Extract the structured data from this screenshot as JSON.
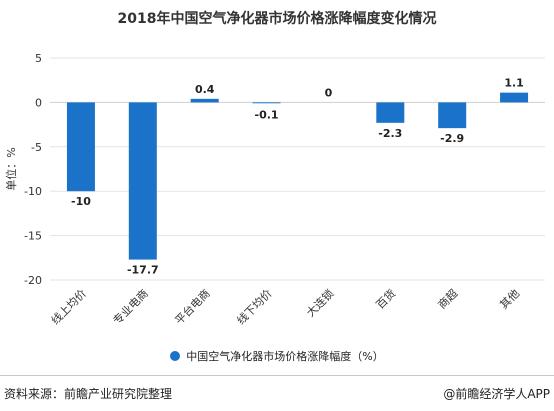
{
  "chart_data": {
    "type": "bar",
    "title": "2018年中国空气净化器市场价格涨降幅度变化情况",
    "ylabel": "单位：%",
    "ylim": [
      -20,
      5
    ],
    "yticks": [
      5,
      0,
      -5,
      -10,
      -15,
      -20
    ],
    "categories": [
      "线上均价",
      "专业电商",
      "平台电商",
      "线下均价",
      "大连锁",
      "百货",
      "商超",
      "其他"
    ],
    "series": [
      {
        "name": "中国空气净化器市场价格涨降幅度（%）",
        "values": [
          -10,
          -17.7,
          0.4,
          -0.1,
          0,
          -2.3,
          -2.9,
          1.1
        ]
      }
    ],
    "data_labels": [
      "-10",
      "-17.7",
      "0.4",
      "-0.1",
      "0",
      "-2.3",
      "-2.9",
      "1.1"
    ],
    "bar_color": "#1a73c8",
    "grid": true,
    "legend_position": "bottom"
  },
  "footer": {
    "source": "资料来源：前瞻产业研究院整理",
    "brand": "@前瞻经济学人APP"
  }
}
